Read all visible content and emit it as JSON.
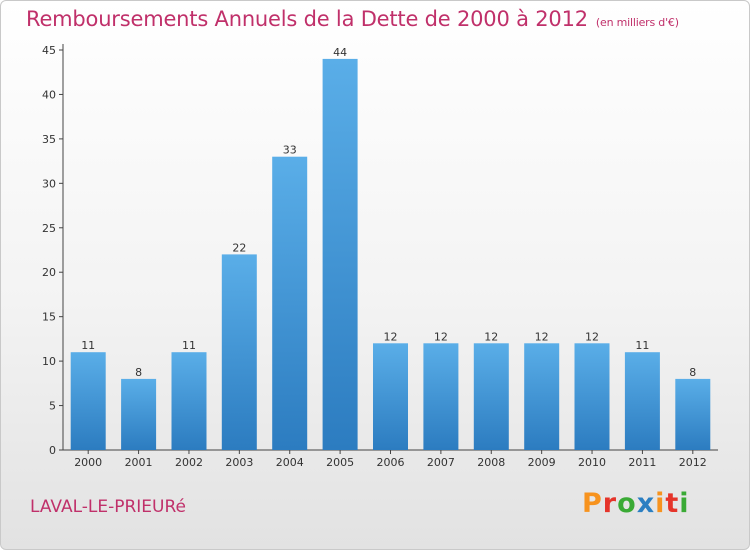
{
  "title": "Remboursements Annuels de la Dette de 2000 à 2012",
  "unit": "(en milliers d'€)",
  "commune": "LAVAL-LE-PRIEURé",
  "logo": {
    "text": "Proxiti",
    "colors": [
      "#f7931e",
      "#e5342a",
      "#3aaa35",
      "#2b7fc2",
      "#f7931e",
      "#e5342a",
      "#3aaa35"
    ]
  },
  "colors": {
    "bar_top": "#5aaee8",
    "bar_bottom": "#2c7cc0",
    "title": "#c0306a"
  },
  "chart_data": {
    "type": "bar",
    "categories": [
      "2000",
      "2001",
      "2002",
      "2003",
      "2004",
      "2005",
      "2006",
      "2007",
      "2008",
      "2009",
      "2010",
      "2011",
      "2012"
    ],
    "values": [
      11,
      8,
      11,
      22,
      33,
      44,
      12,
      12,
      12,
      12,
      12,
      11,
      8
    ],
    "ylim": [
      0,
      45
    ],
    "yticks": [
      0,
      5,
      10,
      15,
      20,
      25,
      30,
      35,
      40,
      45
    ],
    "grid": false,
    "title": "Remboursements Annuels de la Dette de 2000 à 2012",
    "xlabel": "",
    "ylabel": ""
  }
}
